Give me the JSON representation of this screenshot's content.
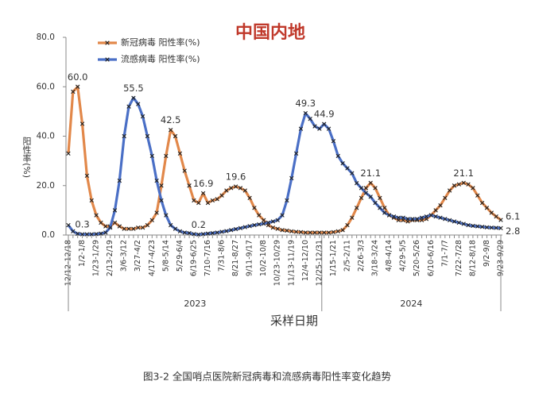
{
  "chart_data": {
    "type": "line",
    "title": "中国内地",
    "ylabel": "阳性率(%)",
    "xlabel": "采样日期",
    "caption": "图3-2 全国哨点医院新冠病毒和流感病毒阳性率变化趋势",
    "year_labels": [
      "2023",
      "2024"
    ],
    "legend": "upper left",
    "ylim": [
      0,
      80
    ],
    "yticks": [
      {
        "value": 0,
        "label": "0.0"
      },
      {
        "value": 20,
        "label": "20.0"
      },
      {
        "value": 40,
        "label": "40.0"
      },
      {
        "value": 60,
        "label": "60.0"
      },
      {
        "value": 80,
        "label": "80.0"
      }
    ],
    "categories": [
      "12/12-12/18",
      null,
      null,
      "1/2-1/8",
      null,
      null,
      "1/23-1/29",
      null,
      null,
      "2/13-2/19",
      null,
      null,
      "3/6-3/12",
      null,
      null,
      "3/27-4/2",
      null,
      null,
      "4/17-4/23",
      null,
      null,
      "5/8-5/14",
      null,
      null,
      "5/29-6/4",
      null,
      null,
      "6/19-6/25",
      null,
      null,
      "7/10-7/16",
      null,
      null,
      "7/31-8/6",
      null,
      null,
      "8/21-8/27",
      null,
      null,
      "9/11-9/17",
      null,
      null,
      "10/2-10/8",
      null,
      null,
      "10/23-10/29",
      null,
      null,
      "11/13-11/19",
      null,
      null,
      "12/4-12/10",
      null,
      null,
      "12/25-12/31",
      null,
      null,
      "1/15-1/21",
      null,
      null,
      "2/5-2/11",
      null,
      null,
      "2/26-3/3",
      null,
      null,
      "3/18-3/24",
      null,
      null,
      "4/8-4/14",
      null,
      null,
      "4/29-5/5",
      null,
      null,
      "5/20-5/26",
      null,
      null,
      "6/10-6/16",
      null,
      null,
      "7/1-7/7",
      null,
      null,
      "7/22-7/28",
      null,
      null,
      "8/12-8/18",
      null,
      null,
      "9/2-9/8",
      null,
      null,
      "9/23-9/29"
    ],
    "series": [
      {
        "name": "新冠病毒 阳性率(%)",
        "color": "#e2884a",
        "values": [
          33,
          58,
          60,
          45,
          24,
          14,
          8,
          5,
          3.5,
          3.5,
          5,
          3.5,
          2.5,
          2.5,
          2.5,
          3,
          3,
          4,
          6,
          9,
          20,
          32,
          42.5,
          40,
          33,
          26,
          20,
          14,
          13,
          16.9,
          13,
          14,
          14.5,
          16,
          18,
          19,
          19.6,
          19,
          18,
          15,
          11,
          8,
          6,
          4,
          3,
          2.5,
          2,
          1.8,
          1.5,
          1.3,
          1.2,
          1,
          1,
          1,
          1,
          1,
          1,
          1.2,
          1.5,
          2,
          4,
          7,
          11,
          15,
          19,
          21.1,
          19,
          15,
          11,
          8,
          7,
          6,
          6,
          5.5,
          6,
          6,
          6,
          6.5,
          8,
          10,
          12,
          15,
          18,
          20,
          20.5,
          21.1,
          20.5,
          19,
          16,
          13,
          11,
          9,
          7.5,
          6.1
        ],
        "value_labels": [
          null,
          null,
          "60.0",
          null,
          null,
          null,
          null,
          null,
          null,
          null,
          null,
          null,
          null,
          null,
          null,
          null,
          null,
          null,
          null,
          null,
          null,
          null,
          "42.5",
          null,
          null,
          null,
          null,
          null,
          null,
          "16.9",
          null,
          null,
          null,
          null,
          null,
          null,
          "19.6",
          null,
          null,
          null,
          null,
          null,
          null,
          null,
          null,
          null,
          null,
          null,
          null,
          null,
          null,
          null,
          null,
          null,
          null,
          null,
          null,
          null,
          null,
          null,
          null,
          null,
          null,
          null,
          null,
          "21.1",
          null,
          null,
          null,
          null,
          null,
          null,
          null,
          null,
          null,
          null,
          null,
          null,
          null,
          null,
          null,
          null,
          null,
          null,
          null,
          "21.1",
          null,
          null,
          null,
          null,
          null,
          null,
          null,
          "6.1"
        ]
      },
      {
        "name": "流感病毒 阳性率(%)",
        "color": "#4a6fc6",
        "values": [
          4,
          1.5,
          0.5,
          0.3,
          0.3,
          0.3,
          0.4,
          0.6,
          1,
          3,
          10,
          22,
          40,
          52,
          55.5,
          53,
          48,
          40,
          32,
          22,
          14,
          8,
          4,
          2.5,
          1.5,
          1,
          0.8,
          0.4,
          0.2,
          0.4,
          0.6,
          0.8,
          1,
          1.3,
          1.6,
          2,
          2.4,
          2.8,
          3.2,
          3.6,
          4,
          4.3,
          4.6,
          5,
          5.5,
          6,
          8,
          14,
          23,
          33,
          43,
          49.3,
          47,
          44,
          43,
          44.9,
          43,
          38,
          32,
          29,
          27,
          25,
          21,
          19,
          17,
          15.5,
          13,
          11,
          9,
          8,
          7.5,
          7,
          7,
          6.5,
          6.5,
          6.5,
          7,
          7.5,
          8,
          7.5,
          7,
          6.5,
          6,
          5.5,
          5,
          4.5,
          4,
          3.7,
          3.5,
          3.3,
          3.1,
          3,
          2.9,
          2.8
        ],
        "value_labels": [
          null,
          null,
          null,
          "0.3",
          null,
          null,
          null,
          null,
          null,
          null,
          null,
          null,
          null,
          null,
          "55.5",
          null,
          null,
          null,
          null,
          null,
          null,
          null,
          null,
          null,
          null,
          null,
          null,
          null,
          "0.2",
          null,
          null,
          null,
          null,
          null,
          null,
          null,
          null,
          null,
          null,
          null,
          null,
          null,
          null,
          null,
          null,
          null,
          null,
          null,
          null,
          null,
          null,
          "49.3",
          null,
          null,
          null,
          "44.9",
          null,
          null,
          null,
          null,
          null,
          null,
          null,
          null,
          null,
          null,
          null,
          null,
          null,
          null,
          null,
          null,
          null,
          null,
          null,
          null,
          null,
          null,
          null,
          null,
          null,
          null,
          null,
          null,
          null,
          null,
          null,
          null,
          null,
          null,
          null,
          null,
          null,
          "2.8"
        ]
      }
    ]
  }
}
